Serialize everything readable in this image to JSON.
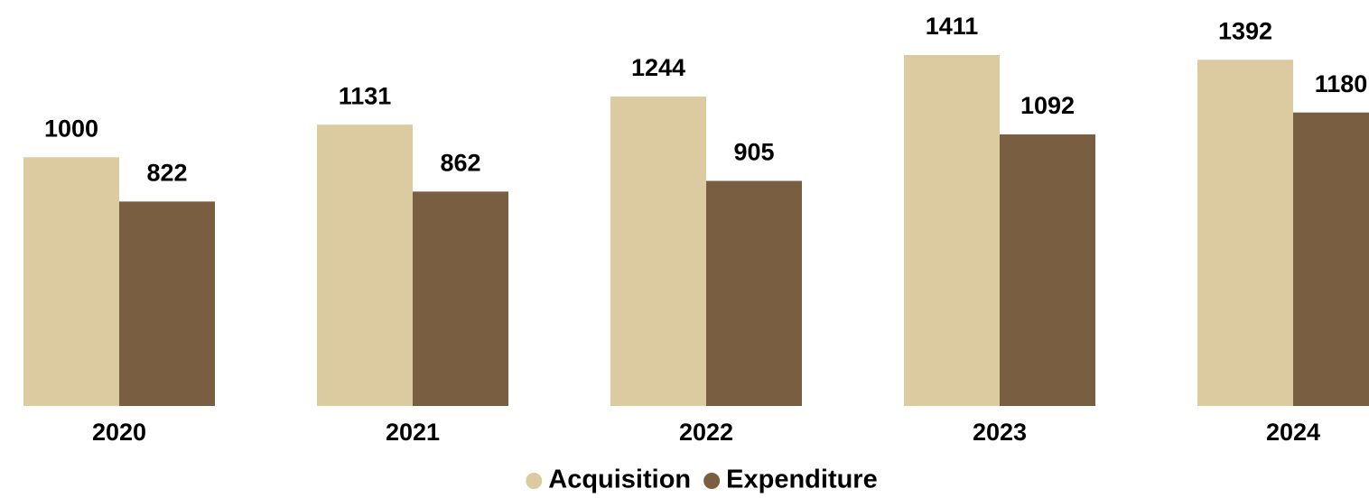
{
  "chart_data": {
    "type": "bar",
    "categories": [
      "2020",
      "2021",
      "2022",
      "2023",
      "2024"
    ],
    "series": [
      {
        "name": "Acquisition",
        "color": "#dccaa1",
        "values": [
          1000,
          1131,
          1244,
          1411,
          1392
        ]
      },
      {
        "name": "Expenditure",
        "color": "#7a5e42",
        "values": [
          822,
          862,
          905,
          1092,
          1180
        ]
      }
    ],
    "legend": "bottom"
  }
}
